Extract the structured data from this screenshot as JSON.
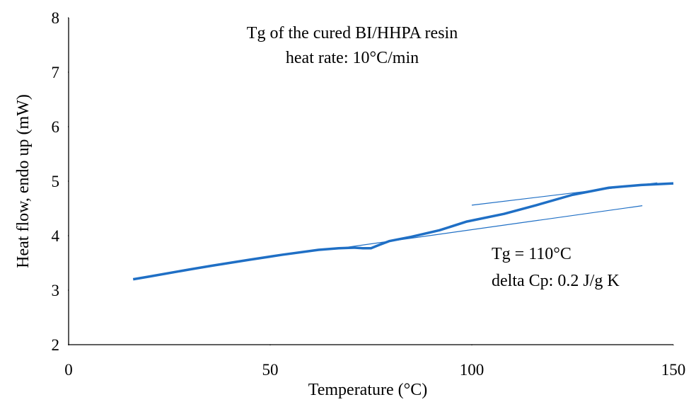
{
  "chart_data": {
    "type": "line",
    "x_label": "Temperature (°C)",
    "y_label": "Heat flow, endo up (mW)",
    "annotations": [
      "Tg of the cured BI/HHPA resin",
      "heat rate: 10°C/min",
      "Tg = 110°C",
      "delta Cp: 0.2 J/g K"
    ],
    "xlim": [
      0,
      150
    ],
    "xticks": [
      0,
      50,
      100,
      150
    ],
    "ylim": [
      2,
      8
    ],
    "yticks": [
      2,
      3,
      4,
      5,
      6,
      7,
      8
    ],
    "grid": false,
    "series": [
      {
        "color": "#1f6fc5",
        "x": [
          16,
          20,
          30,
          35.6,
          45,
          53,
          62,
          67,
          70.7,
          73,
          75,
          77,
          79.5,
          85,
          92,
          98.8,
          108,
          116,
          125,
          134,
          142,
          150
        ],
        "values": [
          3.2,
          3.25,
          3.38,
          3.45,
          3.56,
          3.65,
          3.74,
          3.77,
          3.78,
          3.77,
          3.77,
          3.83,
          3.9,
          3.98,
          4.1,
          4.26,
          4.4,
          4.56,
          4.75,
          4.88,
          4.93,
          4.96
        ]
      }
    ],
    "tangent_lines": [
      {
        "color": "#1f6fc5",
        "x": [
          100,
          146
        ],
        "values": [
          4.56,
          4.97
        ]
      },
      {
        "color": "#1f6fc5",
        "x": [
          65.4,
          142.3
        ],
        "values": [
          3.75,
          4.55
        ]
      }
    ]
  }
}
